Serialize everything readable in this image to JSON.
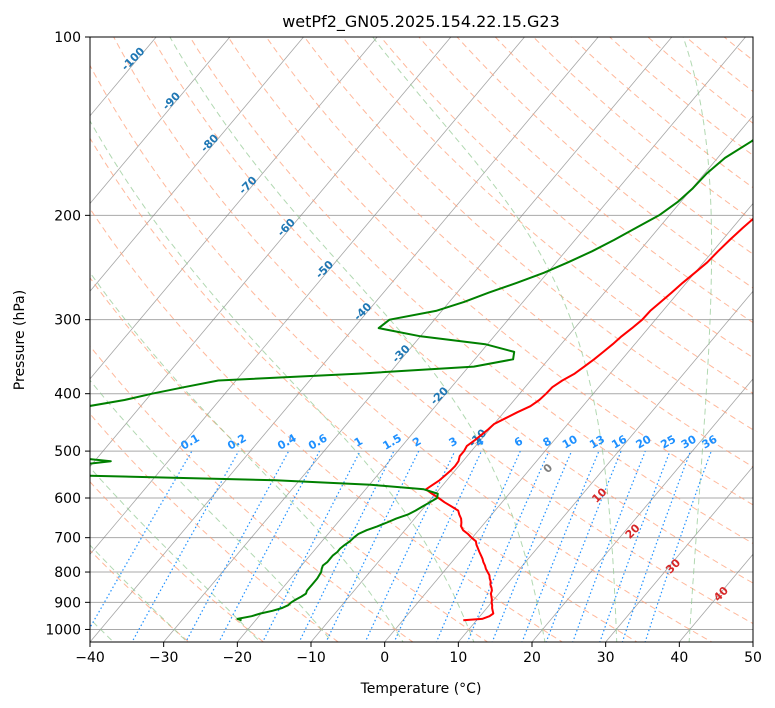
{
  "chart_data": {
    "type": "line",
    "title": "wetPf2_GN05.2025.154.22.15.G23",
    "xlabel": "Temperature (°C)",
    "ylabel": "Pressure (hPa)",
    "xlim": [
      -40,
      50
    ],
    "ylim": [
      1050,
      100
    ],
    "y_scale": "log",
    "x_ticks": [
      -40,
      -30,
      -20,
      -10,
      0,
      10,
      20,
      30,
      40,
      50
    ],
    "y_ticks": [
      1000,
      900,
      800,
      700,
      600,
      500,
      400,
      300,
      200,
      100
    ],
    "grid": true,
    "skew": true,
    "series": [
      {
        "name": "",
        "color": "#ff0000",
        "points": [
          [
            6.9,
            100
          ],
          [
            6.0,
            110
          ],
          [
            6.0,
            120
          ],
          [
            5.0,
            130
          ],
          [
            4.0,
            140
          ],
          [
            3.3,
            150
          ],
          [
            2.7,
            160
          ],
          [
            2.4,
            170
          ],
          [
            2.3,
            180
          ],
          [
            2.2,
            190
          ],
          [
            1.9,
            200
          ],
          [
            1.4,
            210
          ],
          [
            1.0,
            220
          ],
          [
            0.7,
            230
          ],
          [
            0.5,
            240
          ],
          [
            0.0,
            250
          ],
          [
            -0.5,
            260
          ],
          [
            -0.9,
            270
          ],
          [
            -1.3,
            280
          ],
          [
            -1.7,
            290
          ],
          [
            -1.8,
            300
          ],
          [
            -2.2,
            310
          ],
          [
            -2.7,
            320
          ],
          [
            -3.0,
            330
          ],
          [
            -3.4,
            340
          ],
          [
            -3.8,
            350
          ],
          [
            -4.3,
            360
          ],
          [
            -4.8,
            370
          ],
          [
            -5.7,
            380
          ],
          [
            -6.3,
            390
          ],
          [
            -6.4,
            400
          ],
          [
            -6.6,
            410
          ],
          [
            -7.1,
            420
          ],
          [
            -8.2,
            430
          ],
          [
            -9.1,
            440
          ],
          [
            -10.0,
            450
          ],
          [
            -10.2,
            460
          ],
          [
            -10.5,
            470
          ],
          [
            -10.8,
            480
          ],
          [
            -11.2,
            490
          ],
          [
            -11.0,
            500
          ],
          [
            -11.0,
            510
          ],
          [
            -10.6,
            520
          ],
          [
            -10.5,
            530
          ],
          [
            -10.6,
            540
          ],
          [
            -10.8,
            550
          ],
          [
            -11.0,
            560
          ],
          [
            -11.4,
            570
          ],
          [
            -11.8,
            580
          ],
          [
            -10.5,
            590
          ],
          [
            -9.1,
            600
          ],
          [
            -7.8,
            610
          ],
          [
            -6.4,
            620
          ],
          [
            -5.0,
            630
          ],
          [
            -4.4,
            640
          ],
          [
            -3.7,
            650
          ],
          [
            -3.2,
            660
          ],
          [
            -2.8,
            670
          ],
          [
            -2.1,
            680
          ],
          [
            -1.0,
            690
          ],
          [
            -0.1,
            700
          ],
          [
            0.9,
            710
          ],
          [
            1.4,
            720
          ],
          [
            2.0,
            730
          ],
          [
            2.6,
            740
          ],
          [
            3.2,
            750
          ],
          [
            3.8,
            760
          ],
          [
            4.3,
            770
          ],
          [
            4.9,
            780
          ],
          [
            5.4,
            790
          ],
          [
            6.0,
            800
          ],
          [
            6.6,
            810
          ],
          [
            7.0,
            820
          ],
          [
            7.5,
            830
          ],
          [
            7.8,
            840
          ],
          [
            8.3,
            850
          ],
          [
            8.7,
            860
          ],
          [
            8.9,
            870
          ],
          [
            9.3,
            880
          ],
          [
            9.7,
            890
          ],
          [
            10.0,
            900
          ],
          [
            10.4,
            910
          ],
          [
            10.7,
            920
          ],
          [
            11.1,
            930
          ],
          [
            11.5,
            940
          ],
          [
            11.3,
            950
          ],
          [
            10.6,
            960
          ],
          [
            8.2,
            965
          ]
        ]
      },
      {
        "name": "",
        "color": "#008000",
        "points": [
          [
            -1.1,
            100
          ],
          [
            -2.3,
            110
          ],
          [
            -4.0,
            120
          ],
          [
            -5.1,
            130
          ],
          [
            -6.1,
            140
          ],
          [
            -7.3,
            150
          ],
          [
            -9.0,
            160
          ],
          [
            -9.7,
            170
          ],
          [
            -9.9,
            180
          ],
          [
            -10.4,
            190
          ],
          [
            -11.4,
            200
          ],
          [
            -13.1,
            210
          ],
          [
            -14.7,
            220
          ],
          [
            -16.4,
            230
          ],
          [
            -18.4,
            240
          ],
          [
            -20.5,
            250
          ],
          [
            -23.0,
            260
          ],
          [
            -25.7,
            270
          ],
          [
            -28.0,
            280
          ],
          [
            -30.8,
            290
          ],
          [
            -36.1,
            300
          ],
          [
            -36.6,
            310
          ],
          [
            -30.0,
            320
          ],
          [
            -20.3,
            330
          ],
          [
            -15.5,
            340
          ],
          [
            -14.8,
            350
          ],
          [
            -19.3,
            360
          ],
          [
            -34.0,
            370
          ],
          [
            -52.4,
            380
          ],
          [
            -56.3,
            390
          ],
          [
            -59.9,
            400
          ],
          [
            -62.9,
            410
          ],
          [
            -67.1,
            420
          ],
          [
            -71.0,
            430
          ],
          [
            -74.7,
            440
          ],
          [
            -76.3,
            450
          ],
          [
            -76.2,
            460
          ],
          [
            -76.0,
            470
          ],
          [
            -75.8,
            480
          ],
          [
            -75.4,
            490
          ],
          [
            -72.4,
            500
          ],
          [
            -65.0,
            510
          ],
          [
            -57.8,
            520
          ],
          [
            -63.0,
            530
          ],
          [
            -68.1,
            540
          ],
          [
            -59.7,
            550
          ],
          [
            -33.3,
            560
          ],
          [
            -19.8,
            570
          ],
          [
            -12.1,
            580
          ],
          [
            -9.7,
            590
          ],
          [
            -9.3,
            600
          ],
          [
            -9.8,
            610
          ],
          [
            -10.3,
            620
          ],
          [
            -10.8,
            630
          ],
          [
            -11.4,
            640
          ],
          [
            -12.5,
            650
          ],
          [
            -13.3,
            660
          ],
          [
            -14.2,
            670
          ],
          [
            -15.2,
            680
          ],
          [
            -15.9,
            690
          ],
          [
            -16.1,
            700
          ],
          [
            -16.2,
            710
          ],
          [
            -16.5,
            720
          ],
          [
            -16.7,
            730
          ],
          [
            -16.7,
            740
          ],
          [
            -16.9,
            750
          ],
          [
            -16.9,
            760
          ],
          [
            -16.9,
            770
          ],
          [
            -17.1,
            780
          ],
          [
            -16.9,
            790
          ],
          [
            -16.6,
            800
          ],
          [
            -16.5,
            810
          ],
          [
            -16.4,
            820
          ],
          [
            -16.4,
            830
          ],
          [
            -16.4,
            840
          ],
          [
            -16.4,
            850
          ],
          [
            -16.4,
            860
          ],
          [
            -16.2,
            870
          ],
          [
            -16.5,
            880
          ],
          [
            -16.9,
            890
          ],
          [
            -17.2,
            900
          ],
          [
            -17.3,
            910
          ],
          [
            -17.8,
            920
          ],
          [
            -18.8,
            930
          ],
          [
            -20.1,
            940
          ],
          [
            -21.0,
            950
          ],
          [
            -22.6,
            960
          ],
          [
            -21.9,
            965
          ]
        ]
      }
    ],
    "isotherm_labels": [
      "-100",
      "-90",
      "-80",
      "-70",
      "-60",
      "-50",
      "-40",
      "-30",
      "-20",
      "-10"
    ],
    "isotherm_label_temps": [
      -100,
      -90,
      -80,
      -70,
      -60,
      -50,
      -40,
      -30,
      -20,
      -10
    ],
    "mixing_ratio_labels": [
      "0.1",
      "0.2",
      "0.4",
      "0.6",
      "1",
      "1.5",
      "2",
      "3",
      "4",
      "6",
      "8",
      "10",
      "13",
      "16",
      "20",
      "25",
      "30",
      "36"
    ],
    "mixing_ratio_values": [
      0.1,
      0.2,
      0.4,
      0.6,
      1,
      1.5,
      2,
      3,
      4,
      6,
      8,
      10,
      13,
      16,
      20,
      25,
      30,
      36
    ],
    "moist_adiabat_labels": [
      "0",
      "10",
      "20",
      "30",
      "40"
    ],
    "moist_adiabat_theta_w": [
      0,
      10,
      20,
      30,
      40
    ],
    "colors": {
      "temperature": "#ff0000",
      "dewpoint": "#008000",
      "isotherm": "#808080",
      "isobar": "#a9a9a9",
      "dry_adiabat": "#ffa07a",
      "moist_adiabat": "#90c890",
      "mixing_ratio": "#1e90ff",
      "isotherm_label": "#1f77b4",
      "moist_label": "#d62728"
    }
  }
}
